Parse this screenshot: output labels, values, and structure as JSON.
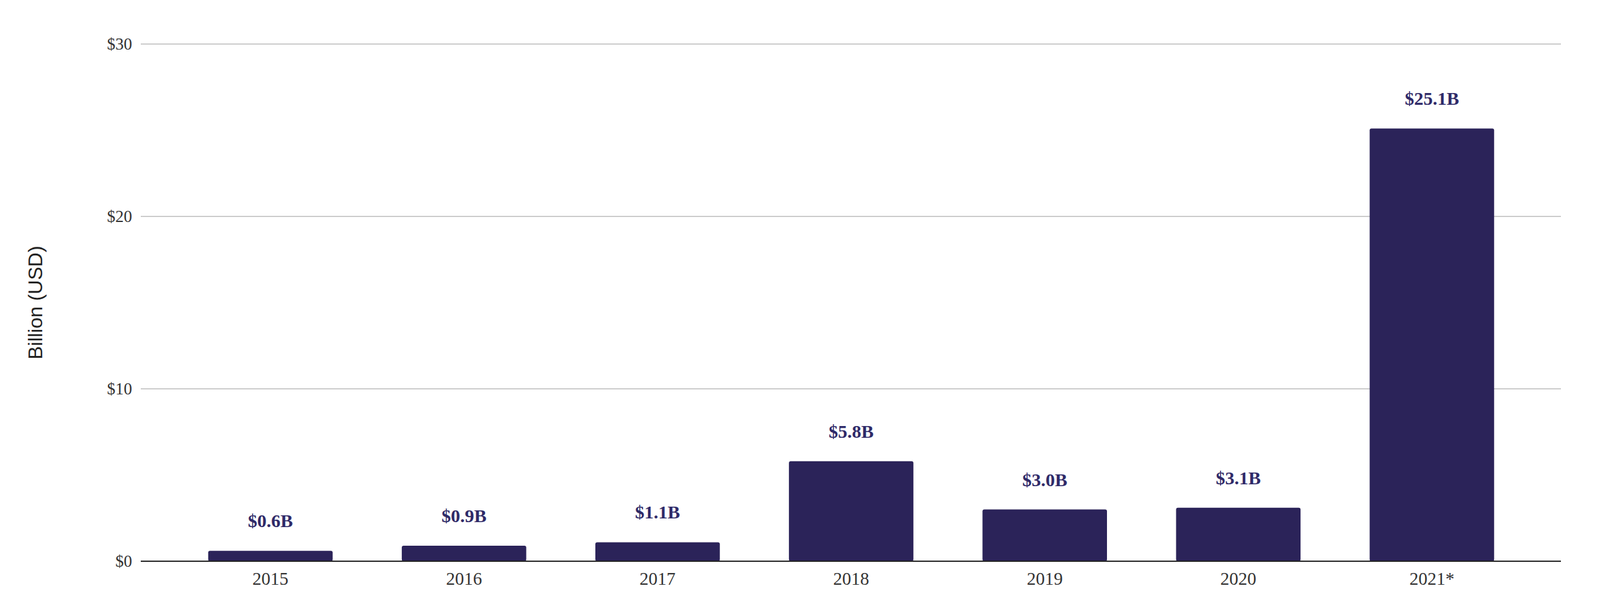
{
  "chart_data": {
    "type": "bar",
    "y_label": "Billion (USD)",
    "categories": [
      "2015",
      "2016",
      "2017",
      "2018",
      "2019",
      "2020",
      "2021*"
    ],
    "values": [
      0.6,
      0.9,
      1.1,
      5.8,
      3.0,
      3.1,
      25.1
    ],
    "value_labels": [
      "$0.6B",
      "$0.9B",
      "$1.1B",
      "$5.8B",
      "$3.0B",
      "$3.1B",
      "$25.1B"
    ],
    "color": "#2b2359",
    "ylim": [
      0,
      30
    ],
    "yticks": [
      {
        "value": 0,
        "label": "$0"
      },
      {
        "value": 10,
        "label": "$10"
      },
      {
        "value": 20,
        "label": "$20"
      },
      {
        "value": 30,
        "label": "$30"
      }
    ],
    "grid": true,
    "data_labels": true
  }
}
